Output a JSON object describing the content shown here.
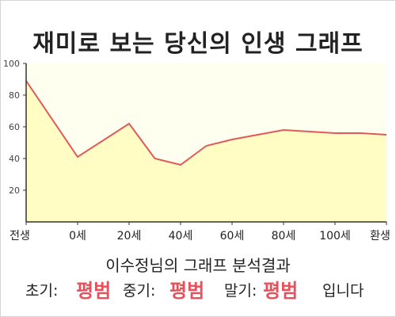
{
  "title": "재미로 보는 당신의 인생 그래프",
  "chart_data": {
    "type": "area",
    "x_labels": [
      "전생",
      "0세",
      "20세",
      "40세",
      "60세",
      "80세",
      "100세",
      "환생"
    ],
    "y_ticks": [
      20,
      40,
      60,
      80,
      100
    ],
    "ylim": [
      0,
      100
    ],
    "x": [
      -2,
      0,
      2,
      3,
      4,
      5,
      6,
      7,
      8,
      9,
      10,
      11,
      12
    ],
    "values": [
      89,
      41,
      62,
      40,
      36,
      48,
      52,
      55,
      58,
      57,
      56,
      56,
      55
    ],
    "line_color": "#e05a5a",
    "fill_color": "#fffcc4",
    "plot_bg": "#fffff0",
    "grid": false
  },
  "subtitle": "이수정님의 그래프 분석결과",
  "result": {
    "early_label": "초기:",
    "early_value": "평범",
    "middle_label": "중기:",
    "middle_value": "평범",
    "late_label": "말기:",
    "late_value": "평범",
    "ending": "입니다"
  }
}
